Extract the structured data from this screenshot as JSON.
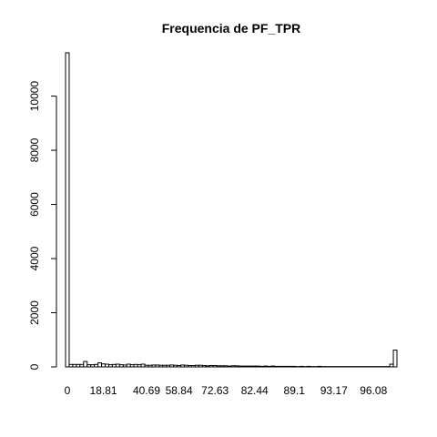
{
  "chart_data": {
    "type": "bar",
    "title": "Frequencia de PF_TPR",
    "xlabel": "",
    "ylabel": "",
    "ylim": [
      0,
      11600
    ],
    "yticks": [
      0,
      2000,
      4000,
      6000,
      8000,
      10000
    ],
    "ytick_labels": [
      "0",
      "2000",
      "4000",
      "6000",
      "8000",
      "10000"
    ],
    "xtick_labels": [
      "0",
      "18.81",
      "40.69",
      "58.84",
      "72.63",
      "82.44",
      "89.1",
      "93.17",
      "96.08"
    ],
    "xtick_bar_index": [
      0,
      10,
      22,
      31,
      41,
      52,
      63,
      74,
      85
    ],
    "values": [
      11600,
      90,
      90,
      90,
      90,
      200,
      80,
      80,
      90,
      150,
      110,
      100,
      80,
      90,
      100,
      80,
      70,
      100,
      80,
      90,
      80,
      100,
      60,
      60,
      70,
      70,
      60,
      60,
      60,
      70,
      60,
      50,
      70,
      60,
      50,
      50,
      60,
      60,
      50,
      40,
      50,
      50,
      40,
      40,
      40,
      30,
      40,
      40,
      30,
      30,
      30,
      30,
      30,
      30,
      20,
      30,
      20,
      30,
      20,
      20,
      20,
      20,
      20,
      20,
      10,
      20,
      10,
      20,
      10,
      10,
      20,
      10,
      10,
      10,
      10,
      10,
      10,
      10,
      10,
      10,
      10,
      10,
      10,
      10,
      10,
      10,
      10,
      10,
      10,
      10,
      100,
      620
    ]
  }
}
